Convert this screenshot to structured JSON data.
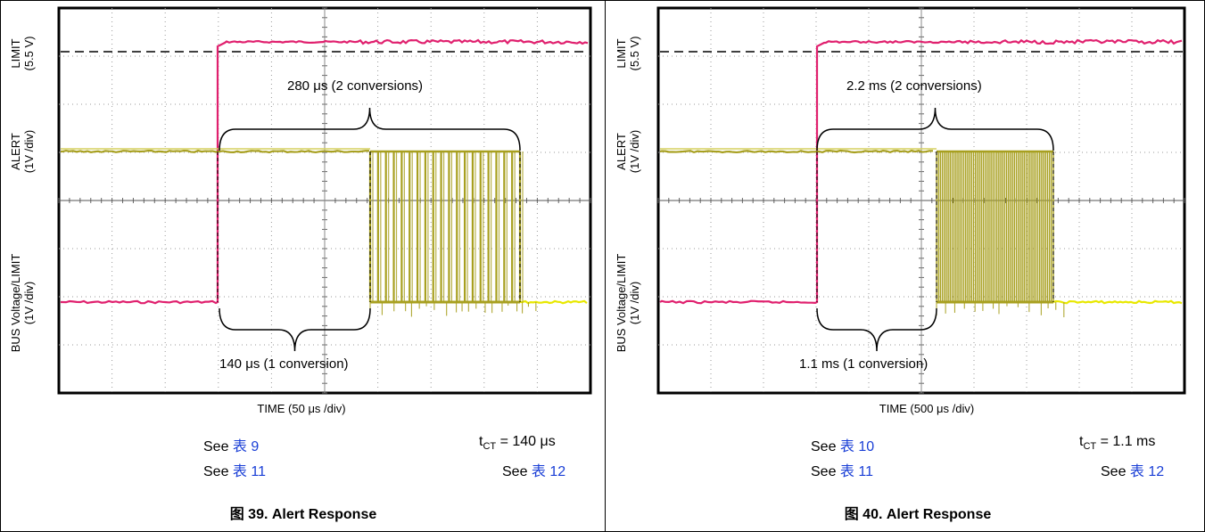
{
  "chart_data": [
    {
      "type": "line",
      "xlabel": "TIME (50 μs /div)",
      "ylabels": {
        "limit": [
          "LIMIT",
          "(5.5 V)"
        ],
        "alert": [
          "ALERT",
          "(1V /div)"
        ],
        "bus": [
          "BUS Voltage/LIMIT",
          "(1V /div)"
        ]
      },
      "annotations": {
        "top_brace": "280 μs (2 conversions)",
        "bottom_brace": "140 μs (1 conversion)"
      },
      "notes": {
        "left1_prefix": "See ",
        "left1_link": "表 9",
        "left2_prefix": "See ",
        "left2_link": "表 11",
        "right1": "t",
        "right1_sub": "CT",
        "right1_rest": " = 140 μs",
        "right2_prefix": "See ",
        "right2_link": "表 12"
      },
      "caption": "图 39. Alert Response",
      "time_per_div_us": 50,
      "grid": true,
      "series": [
        {
          "name": "BUS Voltage/LIMIT",
          "color": "#e0206e"
        },
        {
          "name": "ALERT",
          "color": "#a8a020"
        }
      ]
    },
    {
      "type": "line",
      "xlabel": "TIME (500 μs /div)",
      "ylabels": {
        "limit": [
          "LIMIT",
          "(5.5 V)"
        ],
        "alert": [
          "ALERT",
          "(1V /div)"
        ],
        "bus": [
          "BUS Voltage/LIMIT",
          "(1V /div)"
        ]
      },
      "annotations": {
        "top_brace": "2.2 ms (2 conversions)",
        "bottom_brace": "1.1 ms (1 conversion)"
      },
      "notes": {
        "left1_prefix": "See ",
        "left1_link": "表 10",
        "left2_prefix": "See ",
        "left2_link": "表 11",
        "right1": "t",
        "right1_sub": "CT",
        "right1_rest": " = 1.1 ms",
        "right2_prefix": "See ",
        "right2_link": "表 12"
      },
      "caption": "图 40. Alert Response",
      "time_per_div_us": 500,
      "grid": true,
      "series": [
        {
          "name": "BUS Voltage/LIMIT",
          "color": "#e0206e"
        },
        {
          "name": "ALERT",
          "color": "#a8a020"
        }
      ]
    }
  ]
}
